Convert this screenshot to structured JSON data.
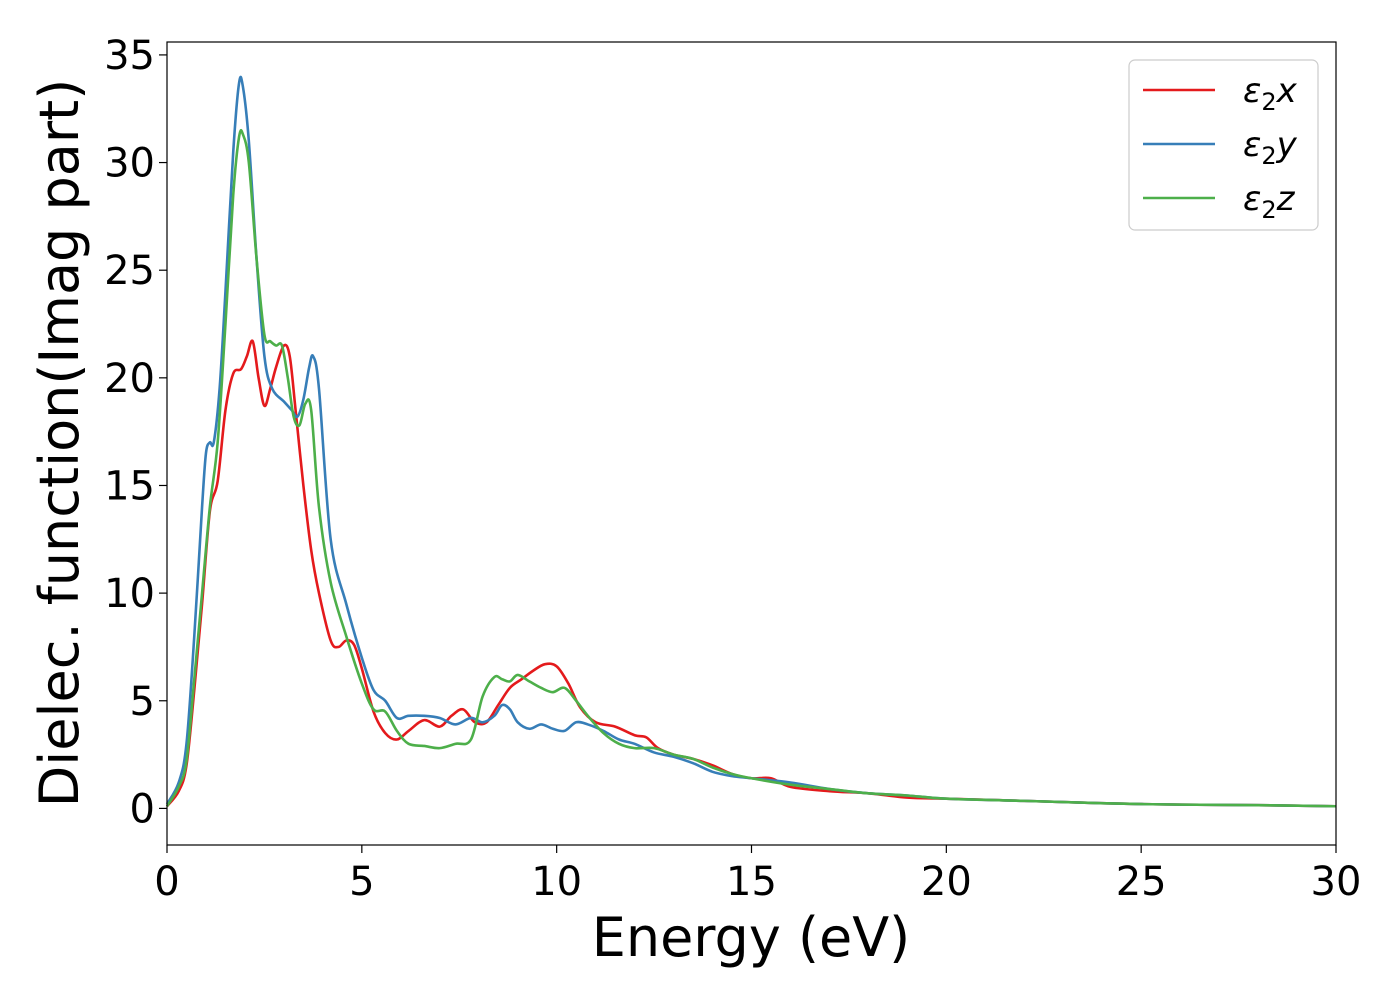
{
  "chart_data": {
    "type": "line",
    "title": "",
    "xlabel": "Energy (eV)",
    "ylabel": "Dielec. function(Imag part)",
    "xlim": [
      0,
      30
    ],
    "ylim": [
      -1.7,
      35.6
    ],
    "xticks": [
      "0",
      "5",
      "10",
      "15",
      "20",
      "25",
      "30"
    ],
    "yticks": [
      "0",
      "5",
      "10",
      "15",
      "20",
      "25",
      "30",
      "35"
    ],
    "grid": false,
    "legend_position": "top-right",
    "series": [
      {
        "name": "ε₂x",
        "legend_base": "ε",
        "legend_sub": "2",
        "legend_tail": "x",
        "color": "#e41a1c",
        "x": [
          0,
          0.3,
          0.5,
          0.7,
          0.9,
          1.1,
          1.3,
          1.5,
          1.7,
          1.9,
          2.05,
          2.2,
          2.35,
          2.5,
          2.65,
          2.8,
          3.0,
          3.15,
          3.3,
          3.5,
          3.7,
          3.9,
          4.2,
          4.4,
          4.6,
          4.8,
          5.0,
          5.3,
          5.6,
          5.9,
          6.2,
          6.6,
          7.0,
          7.3,
          7.6,
          7.9,
          8.2,
          8.5,
          8.8,
          9.1,
          9.4,
          9.7,
          10.0,
          10.3,
          10.6,
          11.0,
          11.5,
          12.0,
          12.3,
          12.6,
          13.0,
          13.5,
          14.0,
          14.5,
          15.0,
          15.5,
          16.0,
          17.0,
          18.0,
          19.0,
          20.0,
          22.0,
          25.0,
          28.0,
          30.0
        ],
        "y": [
          0.1,
          0.8,
          2.0,
          5.5,
          9.5,
          13.8,
          15.2,
          18.5,
          20.2,
          20.4,
          21.0,
          21.7,
          20.0,
          18.7,
          19.5,
          20.5,
          21.5,
          21.0,
          18.5,
          15.0,
          12.0,
          10.0,
          7.8,
          7.5,
          7.8,
          7.6,
          6.5,
          4.5,
          3.5,
          3.2,
          3.6,
          4.1,
          3.8,
          4.3,
          4.6,
          4.0,
          4.0,
          4.8,
          5.6,
          6.0,
          6.4,
          6.7,
          6.6,
          5.8,
          4.7,
          4.0,
          3.8,
          3.4,
          3.3,
          2.8,
          2.5,
          2.3,
          2.0,
          1.6,
          1.4,
          1.4,
          1.0,
          0.8,
          0.7,
          0.5,
          0.45,
          0.35,
          0.2,
          0.15,
          0.1
        ]
      },
      {
        "name": "ε₂y",
        "legend_base": "ε",
        "legend_sub": "2",
        "legend_tail": "y",
        "color": "#377eb8",
        "x": [
          0,
          0.3,
          0.5,
          0.7,
          0.9,
          1.0,
          1.1,
          1.2,
          1.35,
          1.5,
          1.7,
          1.85,
          1.95,
          2.1,
          2.3,
          2.5,
          2.7,
          3.0,
          3.2,
          3.35,
          3.5,
          3.65,
          3.75,
          3.9,
          4.2,
          4.6,
          5.0,
          5.3,
          5.6,
          5.9,
          6.2,
          6.6,
          7.0,
          7.4,
          7.8,
          8.1,
          8.4,
          8.6,
          8.8,
          9.0,
          9.3,
          9.6,
          9.9,
          10.2,
          10.5,
          10.8,
          11.2,
          11.6,
          12.0,
          12.5,
          13.0,
          13.5,
          14.0,
          14.5,
          15.0,
          16.0,
          17.0,
          18.0,
          19.0,
          20.0,
          22.0,
          25.0,
          28.0,
          30.0
        ],
        "y": [
          0.2,
          1.2,
          3.0,
          8.0,
          14.0,
          16.5,
          17.0,
          17.0,
          19.5,
          24.0,
          30.5,
          33.7,
          33.5,
          31.0,
          25.5,
          21.0,
          19.5,
          18.9,
          18.5,
          18.2,
          19.0,
          20.5,
          21.0,
          19.5,
          12.5,
          9.5,
          7.0,
          5.5,
          5.0,
          4.2,
          4.3,
          4.3,
          4.2,
          3.9,
          4.2,
          4.0,
          4.3,
          4.8,
          4.6,
          4.0,
          3.7,
          3.9,
          3.7,
          3.6,
          4.0,
          3.9,
          3.6,
          3.2,
          3.0,
          2.6,
          2.4,
          2.1,
          1.7,
          1.5,
          1.4,
          1.2,
          0.9,
          0.7,
          0.6,
          0.45,
          0.35,
          0.2,
          0.15,
          0.1
        ]
      },
      {
        "name": "ε₂z",
        "legend_base": "ε",
        "legend_sub": "2",
        "legend_tail": "z",
        "color": "#4daf4a",
        "x": [
          0,
          0.3,
          0.5,
          0.7,
          0.9,
          1.1,
          1.3,
          1.5,
          1.7,
          1.85,
          1.95,
          2.1,
          2.3,
          2.5,
          2.65,
          2.8,
          2.95,
          3.1,
          3.25,
          3.4,
          3.55,
          3.7,
          3.9,
          4.2,
          4.6,
          5.0,
          5.3,
          5.6,
          5.9,
          6.2,
          6.6,
          7.0,
          7.4,
          7.8,
          8.1,
          8.4,
          8.6,
          8.8,
          9.0,
          9.3,
          9.6,
          9.9,
          10.2,
          10.5,
          10.8,
          11.2,
          11.6,
          12.0,
          12.5,
          13.0,
          13.5,
          14.0,
          14.5,
          15.0,
          16.0,
          17.0,
          18.0,
          19.0,
          20.0,
          22.0,
          25.0,
          28.0,
          30.0
        ],
        "y": [
          0.1,
          1.0,
          2.2,
          6.0,
          10.0,
          14.0,
          17.0,
          22.5,
          28.5,
          31.2,
          31.3,
          30.0,
          25.5,
          22.0,
          21.7,
          21.5,
          21.5,
          20.0,
          18.2,
          17.8,
          18.8,
          18.5,
          14.0,
          10.5,
          8.0,
          5.8,
          4.6,
          4.5,
          3.6,
          3.0,
          2.9,
          2.8,
          3.0,
          3.2,
          5.2,
          6.1,
          6.0,
          5.9,
          6.2,
          5.9,
          5.6,
          5.4,
          5.6,
          5.0,
          4.3,
          3.5,
          3.0,
          2.8,
          2.8,
          2.5,
          2.3,
          1.9,
          1.6,
          1.4,
          1.1,
          0.9,
          0.7,
          0.6,
          0.45,
          0.35,
          0.2,
          0.15,
          0.1
        ]
      }
    ]
  }
}
